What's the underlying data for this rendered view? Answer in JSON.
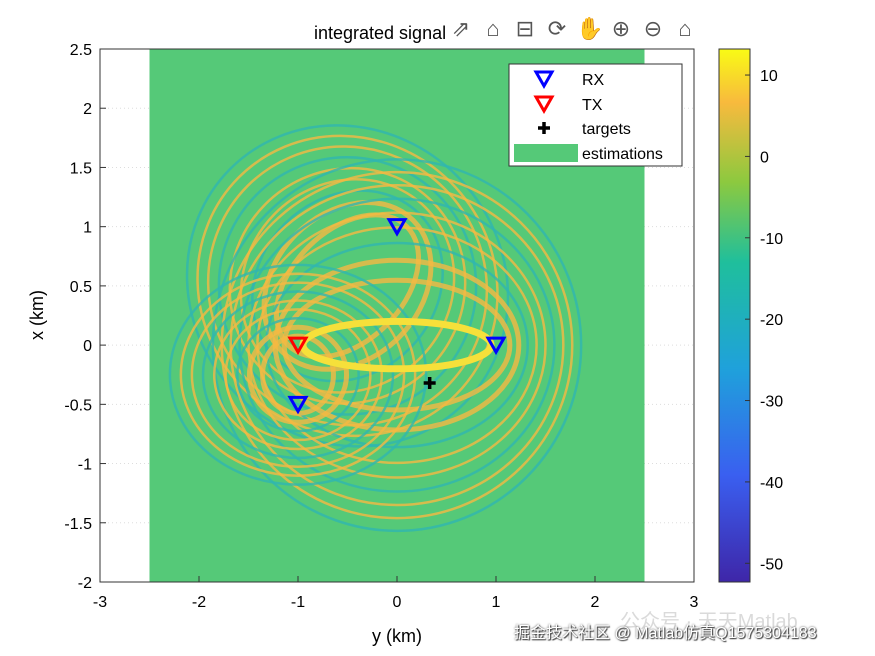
{
  "chart_data": {
    "type": "heatmap",
    "title": "integrated signal",
    "xlabel": "y (km)",
    "ylabel": "x (km)",
    "xlim": [
      -3,
      3
    ],
    "ylim": [
      -2,
      2.5
    ],
    "xticks": [
      "-3",
      "-2",
      "-1",
      "0",
      "1",
      "2",
      "3"
    ],
    "yticks": [
      "2.5",
      "2",
      "1.5",
      "1",
      "0.5",
      "0",
      "-0.5",
      "-1",
      "-1.5",
      "-2"
    ],
    "image_extent": {
      "x": [
        -2.5,
        2.5
      ],
      "y": [
        -2,
        2.5
      ]
    },
    "background_value": -8,
    "rx": [
      {
        "x": 0,
        "y": 1
      },
      {
        "x": 1,
        "y": 0
      },
      {
        "x": -1,
        "y": -0.5
      }
    ],
    "tx": [
      {
        "x": -1,
        "y": 0
      }
    ],
    "targets": [
      {
        "x": 0.33,
        "y": -0.32
      }
    ],
    "legend": {
      "position": "top-right",
      "entries": [
        "RX",
        "TX",
        "targets",
        "estimations"
      ]
    },
    "colorbar": {
      "range": [
        -52.3,
        13.2
      ],
      "ticks": [
        "10",
        "0",
        "-10",
        "-20",
        "-30",
        "-40",
        "-50"
      ],
      "tick_values": [
        10,
        0,
        -10,
        -20,
        -30,
        -40,
        -50
      ]
    },
    "colors": {
      "rx": "#0000ff",
      "tx": "#ff0000",
      "target": "#000000",
      "background": "#55c978",
      "ring": "#f5b942"
    }
  },
  "toolbar": {
    "icons": [
      "export-icon",
      "brush-icon",
      "datatip-icon",
      "rotate-icon",
      "pan-icon",
      "zoom-in-icon",
      "zoom-out-icon",
      "home-icon"
    ]
  },
  "watermark": {
    "line1": "掘金技术社区 @ Matlab仿真Q1575304183",
    "line2": "公众号 · 天天Matlab"
  }
}
